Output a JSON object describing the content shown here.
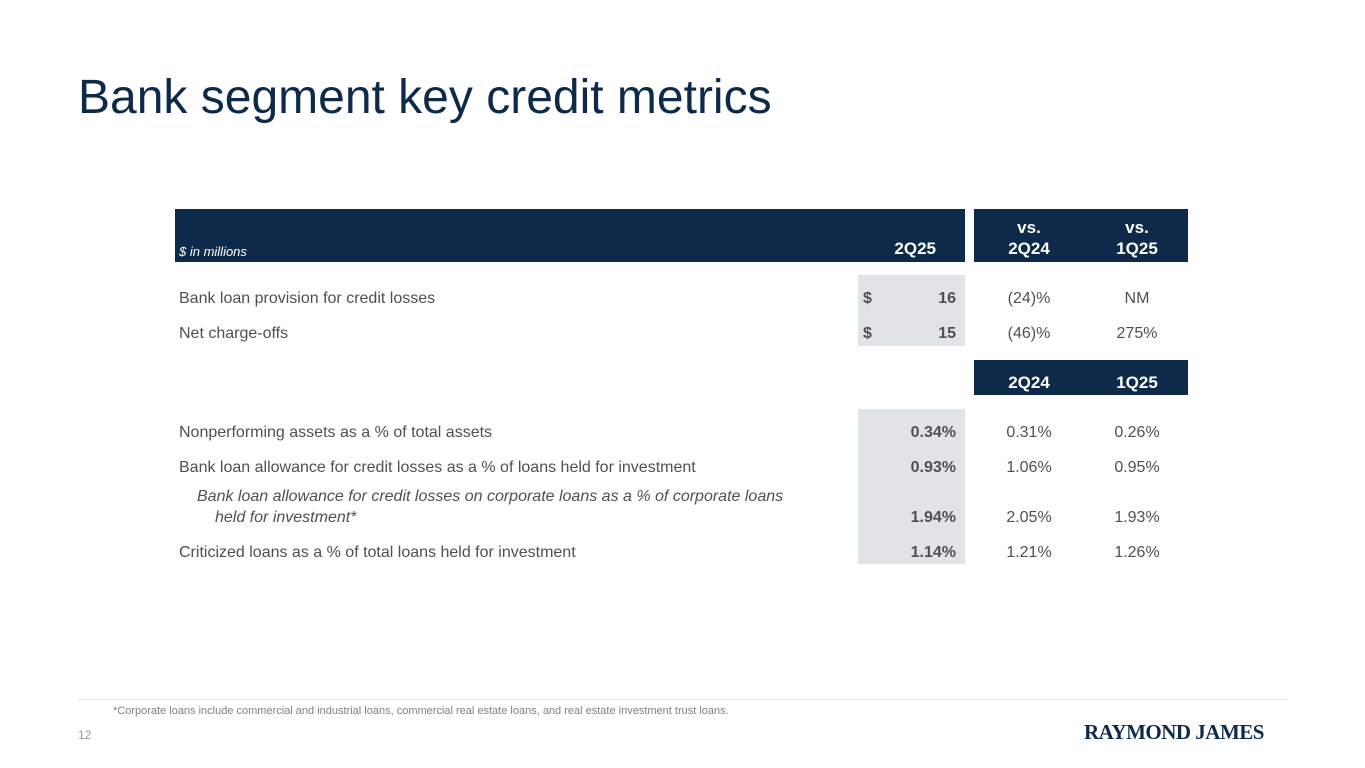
{
  "slide": {
    "title": "Bank segment key credit metrics",
    "page_number": "12",
    "footnote": "*Corporate loans include commercial and industrial loans, commercial real estate loans, and real estate investment trust loans.",
    "logo_text": "RAYMOND JAMES"
  },
  "table": {
    "units_label": "$ in millions",
    "header_current": "2Q25",
    "header_vs1_line1": "vs.",
    "header_vs1_line2": "2Q24",
    "header_vs2_line1": "vs.",
    "header_vs2_line2": "1Q25",
    "section1_rows": [
      {
        "label": "Bank loan provision for credit losses",
        "currency": "$",
        "value": "16",
        "vs_2q24": "(24)%",
        "vs_1q25": "NM"
      },
      {
        "label": "Net charge-offs",
        "currency": "$",
        "value": "15",
        "vs_2q24": "(46)%",
        "vs_1q25": "275%"
      }
    ],
    "section2_header_col1": "2Q24",
    "section2_header_col2": "1Q25",
    "section2_rows": [
      {
        "label": "Nonperforming assets as a % of total assets",
        "current": "0.34%",
        "q2_24": "0.31%",
        "q1_25": "0.26%"
      },
      {
        "label": "Bank loan allowance for credit losses as a % of loans held for investment",
        "current": "0.93%",
        "q2_24": "1.06%",
        "q1_25": "0.95%"
      },
      {
        "label_line1": "Bank loan allowance for credit losses on corporate loans as a % of corporate loans",
        "label_line2": "held for investment*",
        "current": "1.94%",
        "q2_24": "2.05%",
        "q1_25": "1.93%"
      },
      {
        "label": "Criticized loans as a % of total loans held for investment",
        "current": "1.14%",
        "q2_24": "1.21%",
        "q1_25": "1.26%"
      }
    ]
  }
}
